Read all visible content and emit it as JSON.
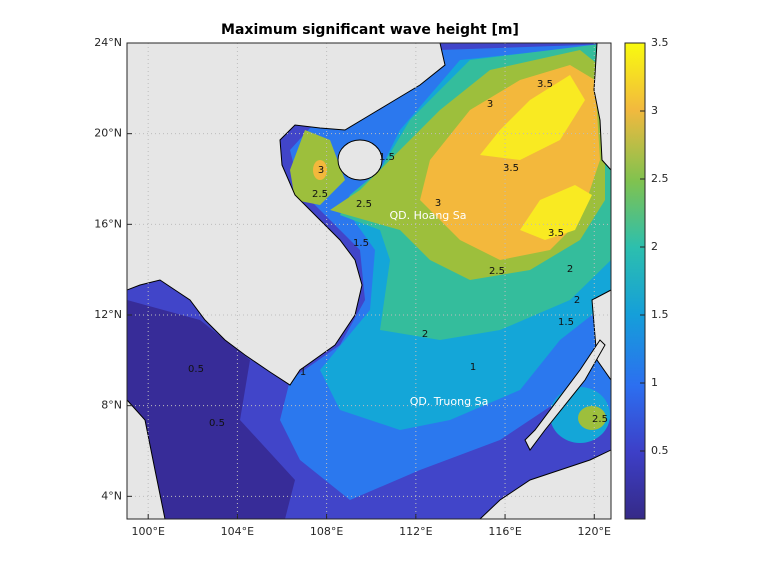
{
  "map": {
    "title": "Maximum significant wave height [m]",
    "lonlim": [
      99.05,
      120.75
    ],
    "latlim": [
      3.0,
      24.0
    ],
    "lonticks": [
      {
        "value": 100,
        "label": "100°E"
      },
      {
        "value": 104,
        "label": "104°E"
      },
      {
        "value": 108,
        "label": "108°E"
      },
      {
        "value": 112,
        "label": "112°E"
      },
      {
        "value": 116,
        "label": "116°E"
      },
      {
        "value": 120,
        "label": "120°E"
      }
    ],
    "latticks": [
      {
        "value": 4,
        "label": "4°N"
      },
      {
        "value": 8,
        "label": "8°N"
      },
      {
        "value": 12,
        "label": "12°N"
      },
      {
        "value": 16,
        "label": "16°N"
      },
      {
        "value": 20,
        "label": "20°N"
      },
      {
        "value": 24,
        "label": "24°N"
      }
    ],
    "colorbar": {
      "lim": [
        0,
        3.5
      ],
      "ticks": [
        0.5,
        1,
        1.5,
        2,
        2.5,
        3,
        3.5
      ]
    },
    "annotations": [
      "QD. Hoang Sa",
      "QD. Truong Sa"
    ],
    "contour_labels": [
      3.5,
      3.5,
      3.5,
      3,
      3,
      3,
      2.5,
      2.5,
      2.5,
      2.5,
      2,
      2,
      2,
      1.5,
      1.5,
      1.5,
      1,
      1,
      0.5,
      0.5
    ]
  }
}
